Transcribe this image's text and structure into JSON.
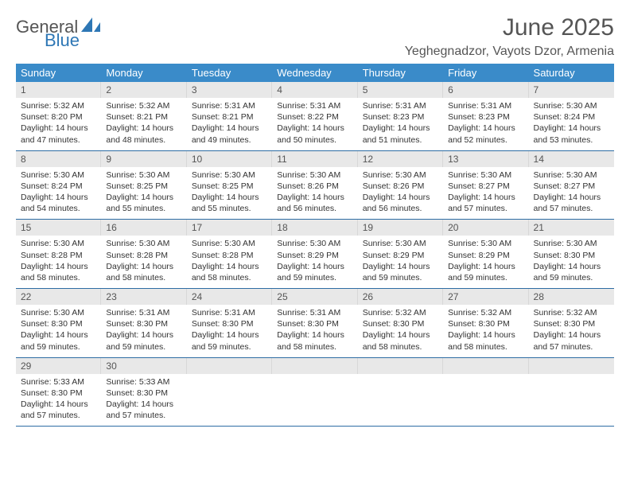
{
  "logo": {
    "word1": "General",
    "word2": "Blue"
  },
  "title": "June 2025",
  "subtitle": "Yeghegnadzor, Vayots Dzor, Armenia",
  "colors": {
    "header_bg": "#3a8bc9",
    "header_text": "#ffffff",
    "daynum_bg": "#e8e8e8",
    "week_border": "#2e6da4",
    "title_color": "#555555",
    "logo_blue": "#2e77b5"
  },
  "dow": [
    "Sunday",
    "Monday",
    "Tuesday",
    "Wednesday",
    "Thursday",
    "Friday",
    "Saturday"
  ],
  "days": [
    {
      "n": "1",
      "sr": "5:32 AM",
      "ss": "8:20 PM",
      "dl": "14 hours and 47 minutes."
    },
    {
      "n": "2",
      "sr": "5:32 AM",
      "ss": "8:21 PM",
      "dl": "14 hours and 48 minutes."
    },
    {
      "n": "3",
      "sr": "5:31 AM",
      "ss": "8:21 PM",
      "dl": "14 hours and 49 minutes."
    },
    {
      "n": "4",
      "sr": "5:31 AM",
      "ss": "8:22 PM",
      "dl": "14 hours and 50 minutes."
    },
    {
      "n": "5",
      "sr": "5:31 AM",
      "ss": "8:23 PM",
      "dl": "14 hours and 51 minutes."
    },
    {
      "n": "6",
      "sr": "5:31 AM",
      "ss": "8:23 PM",
      "dl": "14 hours and 52 minutes."
    },
    {
      "n": "7",
      "sr": "5:30 AM",
      "ss": "8:24 PM",
      "dl": "14 hours and 53 minutes."
    },
    {
      "n": "8",
      "sr": "5:30 AM",
      "ss": "8:24 PM",
      "dl": "14 hours and 54 minutes."
    },
    {
      "n": "9",
      "sr": "5:30 AM",
      "ss": "8:25 PM",
      "dl": "14 hours and 55 minutes."
    },
    {
      "n": "10",
      "sr": "5:30 AM",
      "ss": "8:25 PM",
      "dl": "14 hours and 55 minutes."
    },
    {
      "n": "11",
      "sr": "5:30 AM",
      "ss": "8:26 PM",
      "dl": "14 hours and 56 minutes."
    },
    {
      "n": "12",
      "sr": "5:30 AM",
      "ss": "8:26 PM",
      "dl": "14 hours and 56 minutes."
    },
    {
      "n": "13",
      "sr": "5:30 AM",
      "ss": "8:27 PM",
      "dl": "14 hours and 57 minutes."
    },
    {
      "n": "14",
      "sr": "5:30 AM",
      "ss": "8:27 PM",
      "dl": "14 hours and 57 minutes."
    },
    {
      "n": "15",
      "sr": "5:30 AM",
      "ss": "8:28 PM",
      "dl": "14 hours and 58 minutes."
    },
    {
      "n": "16",
      "sr": "5:30 AM",
      "ss": "8:28 PM",
      "dl": "14 hours and 58 minutes."
    },
    {
      "n": "17",
      "sr": "5:30 AM",
      "ss": "8:28 PM",
      "dl": "14 hours and 58 minutes."
    },
    {
      "n": "18",
      "sr": "5:30 AM",
      "ss": "8:29 PM",
      "dl": "14 hours and 59 minutes."
    },
    {
      "n": "19",
      "sr": "5:30 AM",
      "ss": "8:29 PM",
      "dl": "14 hours and 59 minutes."
    },
    {
      "n": "20",
      "sr": "5:30 AM",
      "ss": "8:29 PM",
      "dl": "14 hours and 59 minutes."
    },
    {
      "n": "21",
      "sr": "5:30 AM",
      "ss": "8:30 PM",
      "dl": "14 hours and 59 minutes."
    },
    {
      "n": "22",
      "sr": "5:30 AM",
      "ss": "8:30 PM",
      "dl": "14 hours and 59 minutes."
    },
    {
      "n": "23",
      "sr": "5:31 AM",
      "ss": "8:30 PM",
      "dl": "14 hours and 59 minutes."
    },
    {
      "n": "24",
      "sr": "5:31 AM",
      "ss": "8:30 PM",
      "dl": "14 hours and 59 minutes."
    },
    {
      "n": "25",
      "sr": "5:31 AM",
      "ss": "8:30 PM",
      "dl": "14 hours and 58 minutes."
    },
    {
      "n": "26",
      "sr": "5:32 AM",
      "ss": "8:30 PM",
      "dl": "14 hours and 58 minutes."
    },
    {
      "n": "27",
      "sr": "5:32 AM",
      "ss": "8:30 PM",
      "dl": "14 hours and 58 minutes."
    },
    {
      "n": "28",
      "sr": "5:32 AM",
      "ss": "8:30 PM",
      "dl": "14 hours and 57 minutes."
    },
    {
      "n": "29",
      "sr": "5:33 AM",
      "ss": "8:30 PM",
      "dl": "14 hours and 57 minutes."
    },
    {
      "n": "30",
      "sr": "5:33 AM",
      "ss": "8:30 PM",
      "dl": "14 hours and 57 minutes."
    }
  ],
  "labels": {
    "sunrise": "Sunrise: ",
    "sunset": "Sunset: ",
    "daylight": "Daylight: "
  }
}
